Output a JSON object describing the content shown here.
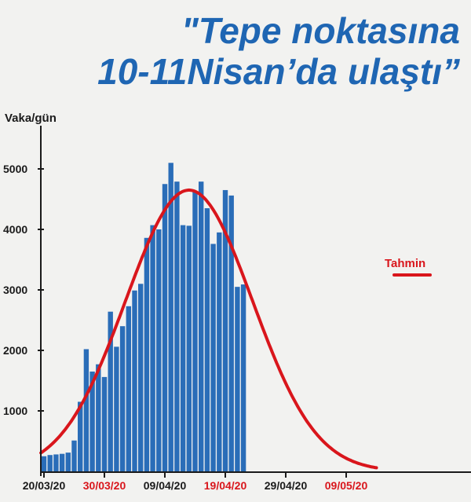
{
  "title_line1": "\"Tepe noktasına",
  "title_line2": "10-11Nisan’da ulaştı”",
  "chart_data": {
    "type": "bar",
    "ylabel": "Vaka/gün",
    "ylim": [
      0,
      5500
    ],
    "yticks": [
      1000,
      2000,
      3000,
      4000,
      5000
    ],
    "xticks": [
      {
        "label": "20/03/20",
        "index": 0,
        "color": "#1a1a1a"
      },
      {
        "label": "30/03/20",
        "index": 10,
        "color": "#d9161c"
      },
      {
        "label": "09/04/20",
        "index": 20,
        "color": "#1a1a1a"
      },
      {
        "label": "19/04/20",
        "index": 30,
        "color": "#d9161c"
      },
      {
        "label": "29/04/20",
        "index": 40,
        "color": "#1a1a1a"
      },
      {
        "label": "09/05/20",
        "index": 50,
        "color": "#d9161c"
      }
    ],
    "bar_color": "#2a6db8",
    "series": [
      {
        "values": [
          250,
          270,
          280,
          290,
          310,
          510,
          1150,
          2020,
          1650,
          1770,
          1560,
          2640,
          2060,
          2400,
          2730,
          2990,
          3100,
          3860,
          4070,
          4000,
          4750,
          5100,
          4790,
          4070,
          4060,
          4620,
          4790,
          4350,
          3760,
          3950,
          4650,
          4560,
          3050,
          3090
        ]
      },
      {
        "name": "Tahmin",
        "color": "#d9161c",
        "type": "line",
        "curve": {
          "peak": 4650,
          "peak_index": 24,
          "sigma": 10.5,
          "range": [
            0,
            55
          ]
        }
      }
    ],
    "legend": [
      {
        "label": "Tahmin",
        "color": "#d9161c"
      }
    ]
  }
}
